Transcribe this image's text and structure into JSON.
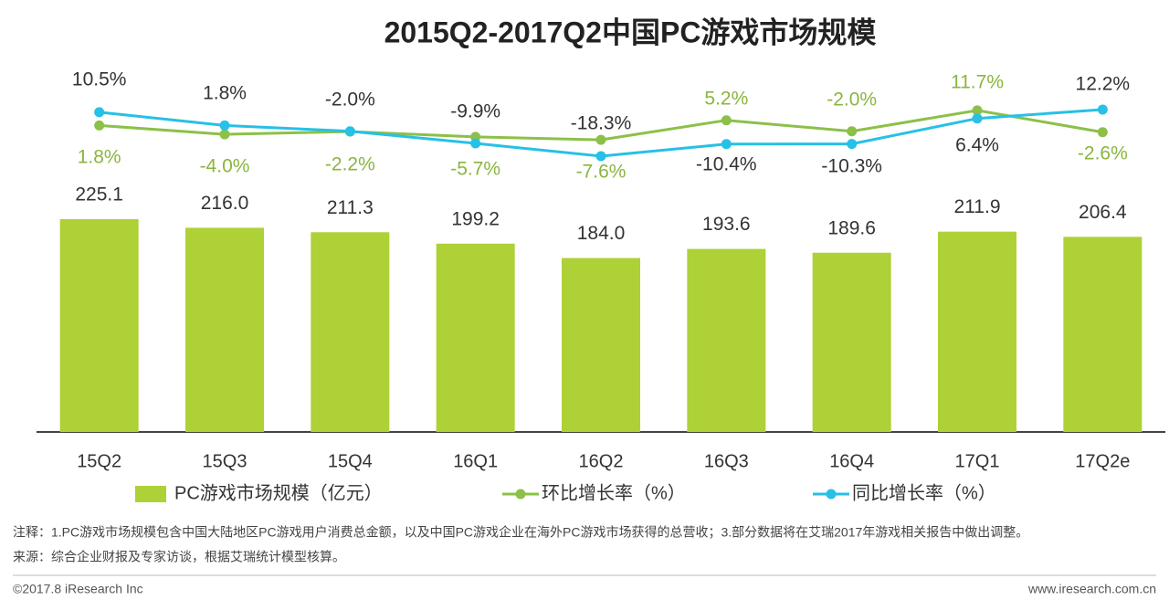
{
  "chart_data": {
    "type": "bar",
    "title": "2015Q2-2017Q2中国PC游戏市场规模",
    "categories": [
      "15Q2",
      "15Q3",
      "15Q4",
      "16Q1",
      "16Q2",
      "16Q3",
      "16Q4",
      "17Q1",
      "17Q2e"
    ],
    "series": [
      {
        "name": "PC游戏市场规模（亿元）",
        "type": "bar",
        "color": "#add136",
        "values": [
          225.1,
          216.0,
          211.3,
          199.2,
          184.0,
          193.6,
          189.6,
          211.9,
          206.4
        ],
        "value_labels": [
          "225.1",
          "216.0",
          "211.3",
          "199.2",
          "184.0",
          "193.6",
          "189.6",
          "211.9",
          "206.4"
        ]
      },
      {
        "name": "环比增长率（%）",
        "type": "line",
        "color": "#8cc049",
        "values": [
          1.8,
          -4.0,
          -2.2,
          -5.7,
          -7.6,
          5.2,
          -2.0,
          11.7,
          -2.6
        ],
        "value_labels": [
          "1.8%",
          "-4.0%",
          "-2.2%",
          "-5.7%",
          "-7.6%",
          "5.2%",
          "-2.0%",
          "11.7%",
          "-2.6%"
        ]
      },
      {
        "name": "同比增长率（%）",
        "type": "line",
        "color": "#27c0e6",
        "values": [
          10.5,
          1.8,
          -2.0,
          -9.9,
          -18.3,
          -10.4,
          -10.3,
          6.4,
          12.2
        ],
        "value_labels": [
          "10.5%",
          "1.8%",
          "-2.0%",
          "-9.9%",
          "-18.3%",
          "-10.4%",
          "-10.3%",
          "6.4%",
          "12.2%"
        ]
      }
    ]
  },
  "notes": [
    "注释：1.PC游戏市场规模包含中国大陆地区PC游戏用户消费总金额，以及中国PC游戏企业在海外PC游戏市场获得的总营收；3.部分数据将在艾瑞2017年游戏相关报告中做出调整。",
    "来源：综合企业财报及专家访谈，根据艾瑞统计模型核算。"
  ],
  "footer": {
    "copyright": "©2017.8 iResearch Inc",
    "website": "www.iresearch.com.cn"
  }
}
